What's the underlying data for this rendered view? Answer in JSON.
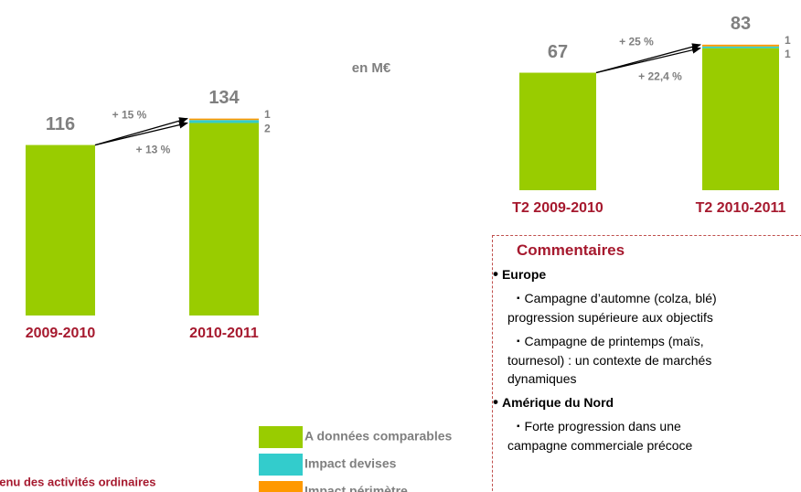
{
  "chart_data": [
    {
      "type": "stacked-bar",
      "categories": [
        "2009-2010",
        "2010-2011"
      ],
      "series": [
        {
          "name": "A données comparables",
          "color": "#99cc00",
          "values": [
            116,
            131
          ]
        },
        {
          "name": "Impact devises",
          "color": "#33cccc",
          "values": [
            null,
            2
          ]
        },
        {
          "name": "Impact périmètre",
          "color": "#ff9900",
          "values": [
            null,
            1
          ]
        }
      ],
      "totals": [
        116,
        134
      ],
      "annotations": [
        "+ 15 %",
        "+ 13 %"
      ],
      "ylim": [
        0,
        140
      ]
    },
    {
      "type": "stacked-bar",
      "categories": [
        "T2 2009-2010",
        "T2 2010-2011"
      ],
      "series": [
        {
          "name": "A données comparables",
          "color": "#99cc00",
          "values": [
            67,
            81
          ]
        },
        {
          "name": "Impact devises",
          "color": "#33cccc",
          "values": [
            null,
            1
          ]
        },
        {
          "name": "Impact périmètre",
          "color": "#ff9900",
          "values": [
            null,
            1
          ]
        }
      ],
      "totals": [
        67,
        83
      ],
      "annotations": [
        "+ 25 %",
        "+ 22,4 %"
      ],
      "ylim": [
        0,
        85
      ]
    }
  ],
  "unit_label": "en M€",
  "footer": "venu des activités ordinaires",
  "comments": {
    "title": "Commentaires",
    "sections": [
      {
        "heading": "Europe",
        "items": [
          [
            "Campagne d’automne (colza, blé)",
            "progression supérieure aux objectifs"
          ],
          [
            "Campagne de printemps (maïs,",
            "tournesol) : un contexte de marchés",
            "dynamiques"
          ]
        ]
      },
      {
        "heading": "Amérique du Nord",
        "items": [
          [
            "Forte progression dans une",
            "campagne commerciale précoce"
          ]
        ]
      }
    ]
  }
}
